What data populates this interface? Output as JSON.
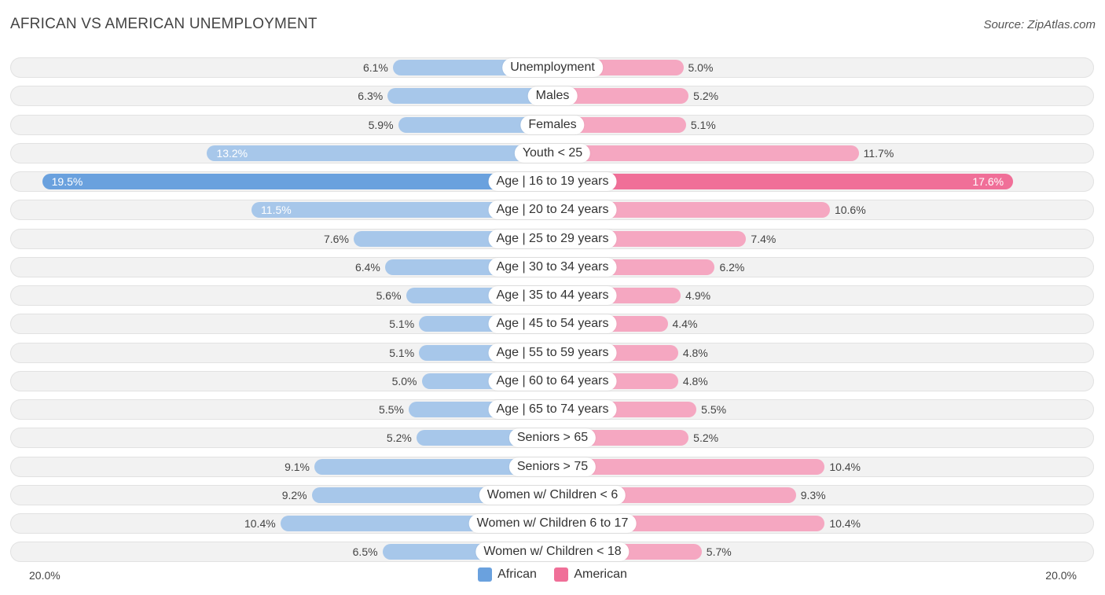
{
  "header": {
    "title": "AFRICAN VS AMERICAN UNEMPLOYMENT",
    "source": "Source: ZipAtlas.com"
  },
  "colors": {
    "african": "#6aa1de",
    "african_light": "#a7c7ea",
    "american": "#f06f98",
    "american_light": "#f5a7c1"
  },
  "chart_data": {
    "type": "bar",
    "orientation": "horizontal-diverging",
    "title": "AFRICAN VS AMERICAN UNEMPLOYMENT",
    "axis": {
      "left_label": "20.0%",
      "right_label": "20.0%",
      "max": 20.0
    },
    "legend": [
      "African",
      "American"
    ],
    "categories": [
      "Unemployment",
      "Males",
      "Females",
      "Youth < 25",
      "Age | 16 to 19 years",
      "Age | 20 to 24 years",
      "Age | 25 to 29 years",
      "Age | 30 to 34 years",
      "Age | 35 to 44 years",
      "Age | 45 to 54 years",
      "Age | 55 to 59 years",
      "Age | 60 to 64 years",
      "Age | 65 to 74 years",
      "Seniors > 65",
      "Seniors > 75",
      "Women w/ Children < 6",
      "Women w/ Children 6 to 17",
      "Women w/ Children < 18"
    ],
    "series": [
      {
        "name": "African",
        "values": [
          6.1,
          6.3,
          5.9,
          13.2,
          19.5,
          11.5,
          7.6,
          6.4,
          5.6,
          5.1,
          5.1,
          5.0,
          5.5,
          5.2,
          9.1,
          9.2,
          10.4,
          6.5
        ],
        "labels": [
          "6.1%",
          "6.3%",
          "5.9%",
          "13.2%",
          "19.5%",
          "11.5%",
          "7.6%",
          "6.4%",
          "5.6%",
          "5.1%",
          "5.1%",
          "5.0%",
          "5.5%",
          "5.2%",
          "9.1%",
          "9.2%",
          "10.4%",
          "6.5%"
        ]
      },
      {
        "name": "American",
        "values": [
          5.0,
          5.2,
          5.1,
          11.7,
          17.6,
          10.6,
          7.4,
          6.2,
          4.9,
          4.4,
          4.8,
          4.8,
          5.5,
          5.2,
          10.4,
          9.3,
          10.4,
          5.7
        ],
        "labels": [
          "5.0%",
          "5.2%",
          "5.1%",
          "11.7%",
          "17.6%",
          "10.6%",
          "7.4%",
          "6.2%",
          "4.9%",
          "4.4%",
          "4.8%",
          "4.8%",
          "5.5%",
          "5.2%",
          "10.4%",
          "9.3%",
          "10.4%",
          "5.7%"
        ]
      }
    ]
  }
}
